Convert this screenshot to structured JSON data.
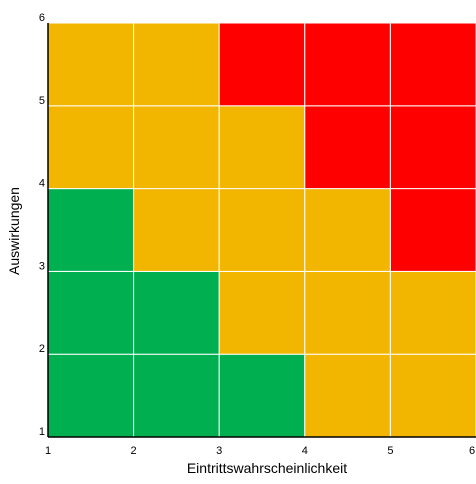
{
  "chart_data": {
    "type": "heatmap",
    "title": "",
    "xlabel": "Eintrittswahrscheinlichkeit",
    "ylabel": "Auswirkungen",
    "xlim": [
      1,
      6
    ],
    "ylim": [
      1,
      6
    ],
    "x_ticks": [
      "1",
      "2",
      "3",
      "4",
      "5",
      "6"
    ],
    "y_ticks": [
      "1",
      "2",
      "3",
      "4",
      "5",
      "6"
    ],
    "grid": true,
    "colors": {
      "green": "#00B050",
      "amber": "#F2B600",
      "red": "#FF0000",
      "grid": "#ffffff",
      "axis": "#000000"
    },
    "rows_bottom_to_top": [
      [
        "green",
        "green",
        "green",
        "amber",
        "amber"
      ],
      [
        "green",
        "green",
        "amber",
        "amber",
        "amber"
      ],
      [
        "green",
        "amber",
        "amber",
        "amber",
        "red"
      ],
      [
        "amber",
        "amber",
        "amber",
        "red",
        "red"
      ],
      [
        "amber",
        "amber",
        "red",
        "red",
        "red"
      ]
    ]
  }
}
